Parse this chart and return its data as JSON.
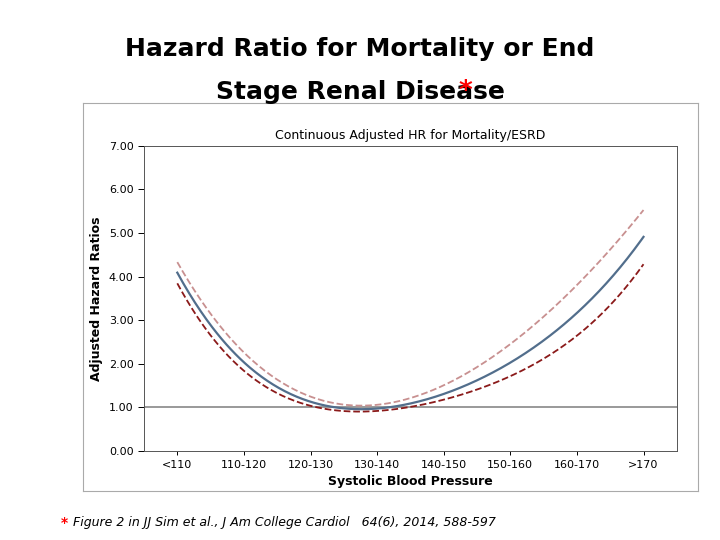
{
  "title_line1": "Hazard Ratio for Mortality or End",
  "title_line2": "Stage Renal Disease",
  "title_star": "*",
  "subtitle": "Continuous Adjusted HR for Mortality/ESRD",
  "footnote_star": "*",
  "footnote_text": "Figure 2 in JJ Sim et al., J Am College Cardiol   64(6), 2014, 588-597",
  "xlabel": "Systolic Blood Pressure",
  "ylabel": "Adjusted Hazard Ratios",
  "ylim": [
    0.0,
    7.0
  ],
  "yticks": [
    0.0,
    1.0,
    2.0,
    3.0,
    4.0,
    5.0,
    6.0,
    7.0
  ],
  "ytick_labels": [
    "0.00",
    "1.00",
    "2.00",
    "3.00",
    "4.00",
    "5.00",
    "6.00",
    "7.00"
  ],
  "xtick_labels": [
    "<110",
    "110-120",
    "120-130",
    "130-140",
    "140-150",
    "150-160",
    "160-170",
    ">170"
  ],
  "ref_line_y": 1.0,
  "main_color": "#526e8c",
  "ci_lower_color": "#8b1a1a",
  "ci_upper_color": "#c89090",
  "ref_line_color": "#888888",
  "border_color": "#aaaaaa",
  "background_color": "#ffffff",
  "plot_bg_color": "#ffffff",
  "title_fontsize": 18,
  "subtitle_fontsize": 9,
  "axis_label_fontsize": 9,
  "tick_fontsize": 8,
  "footnote_fontsize": 9,
  "y_main": [
    4.1,
    2.0,
    1.15,
    1.0,
    1.28,
    2.0,
    3.2,
    4.9
  ],
  "y_upper": [
    4.35,
    2.2,
    1.28,
    1.1,
    1.5,
    2.35,
    3.9,
    5.5
  ],
  "y_lower": [
    3.85,
    1.82,
    1.05,
    0.93,
    1.15,
    1.72,
    2.65,
    4.28
  ]
}
